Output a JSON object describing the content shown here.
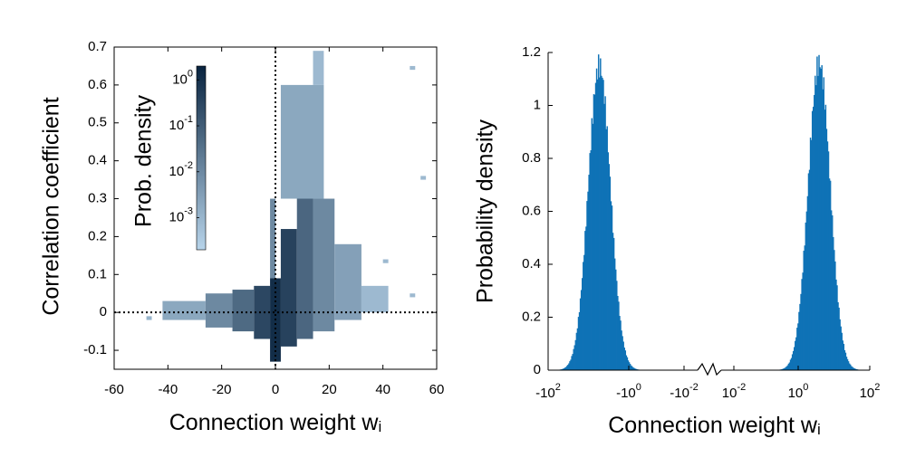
{
  "chart_data": [
    {
      "type": "heatmap",
      "xlabel": "Connection weight w",
      "xlabel_sub": "i",
      "ylabel": "Correlation coefficient",
      "xlim": [
        -60,
        60
      ],
      "ylim": [
        -0.15,
        0.7
      ],
      "xticks": [
        -60,
        -40,
        -20,
        0,
        20,
        40,
        60
      ],
      "xtick_labels": [
        "-60",
        "-40",
        "-20",
        "0",
        "20",
        "40",
        "60"
      ],
      "yticks": [
        -0.1,
        0,
        0.1,
        0.2,
        0.3,
        0.4,
        0.5,
        0.6,
        0.7
      ],
      "ytick_labels": [
        "-0.1",
        "0",
        "0.1",
        "0.2",
        "0.3",
        "0.4",
        "0.5",
        "0.6",
        "0.7"
      ],
      "reference_lines": {
        "x": 0,
        "y": 0,
        "style": "dotted"
      },
      "colorbar": {
        "label": "Prob. density",
        "scale": "log",
        "range": [
          0.0002,
          2
        ],
        "ticks": [
          {
            "base": "10",
            "exp": "0",
            "value": 1
          },
          {
            "base": "10",
            "exp": "-1",
            "value": 0.1
          },
          {
            "base": "10",
            "exp": "-2",
            "value": 0.01
          },
          {
            "base": "10",
            "exp": "-3",
            "value": 0.001
          }
        ],
        "color_low": "#b7d4ea",
        "color_high": "#08233f",
        "placement": "inside upper-left"
      },
      "density_cells": [
        {
          "x": [
            -48,
            -46
          ],
          "y": [
            -0.01,
            -0.02
          ],
          "d": 0.001
        },
        {
          "x": [
            -42,
            -26
          ],
          "y": [
            -0.02,
            0.03
          ],
          "d": 0.002
        },
        {
          "x": [
            -26,
            -16
          ],
          "y": [
            -0.04,
            0.05
          ],
          "d": 0.01
        },
        {
          "x": [
            -16,
            -8
          ],
          "y": [
            -0.05,
            0.06
          ],
          "d": 0.05
        },
        {
          "x": [
            -8,
            -2
          ],
          "y": [
            -0.07,
            0.07
          ],
          "d": 0.3
        },
        {
          "x": [
            -2,
            2
          ],
          "y": [
            -0.13,
            0.09
          ],
          "d": 1.2
        },
        {
          "x": [
            -2,
            0
          ],
          "y": [
            0.09,
            0.3
          ],
          "d": 0.01
        },
        {
          "x": [
            2,
            8
          ],
          "y": [
            -0.09,
            0.22
          ],
          "d": 0.4
        },
        {
          "x": [
            8,
            14
          ],
          "y": [
            -0.07,
            0.32
          ],
          "d": 0.06
        },
        {
          "x": [
            14,
            22
          ],
          "y": [
            -0.05,
            0.3
          ],
          "d": 0.01
        },
        {
          "x": [
            22,
            32
          ],
          "y": [
            -0.02,
            0.18
          ],
          "d": 0.003
        },
        {
          "x": [
            32,
            42
          ],
          "y": [
            0.0,
            0.07
          ],
          "d": 0.0008
        },
        {
          "x": [
            2,
            18
          ],
          "y": [
            0.3,
            0.6
          ],
          "d": 0.002
        },
        {
          "x": [
            14,
            18
          ],
          "y": [
            0.6,
            0.69
          ],
          "d": 0.0008
        },
        {
          "x": [
            50,
            52
          ],
          "y": [
            0.64,
            0.65
          ],
          "d": 0.0008
        },
        {
          "x": [
            54,
            56
          ],
          "y": [
            0.35,
            0.36
          ],
          "d": 0.0008
        },
        {
          "x": [
            40,
            42
          ],
          "y": [
            0.13,
            0.14
          ],
          "d": 0.0008
        },
        {
          "x": [
            50,
            52
          ],
          "y": [
            0.04,
            0.05
          ],
          "d": 0.0008
        }
      ]
    },
    {
      "type": "bar",
      "subtype": "histogram",
      "xlabel": "Connection weight w",
      "xlabel_sub": "i",
      "ylabel": "Probability density",
      "xscale": "symlog",
      "ylim": [
        0,
        1.2
      ],
      "yticks": [
        0,
        0.2,
        0.4,
        0.6,
        0.8,
        1,
        1.2
      ],
      "ytick_labels": [
        "0",
        "0.2",
        "0.4",
        "0.6",
        "0.8",
        "1",
        "1.2"
      ],
      "xtick_labels": [
        {
          "base": "-10",
          "exp": "2"
        },
        {
          "base": "-10",
          "exp": "0"
        },
        {
          "base": "-10",
          "exp": "-2"
        },
        {
          "base": "10",
          "exp": "-2"
        },
        {
          "base": "10",
          "exp": "0"
        },
        {
          "base": "10",
          "exp": "2"
        }
      ],
      "axis_break": true,
      "color": "#0f72b6",
      "peaks": [
        {
          "x": -3,
          "height": 1.15
        },
        {
          "x": 3,
          "height": 1.16
        }
      ],
      "support": {
        "left": [
          -100,
          -0.03
        ],
        "right": [
          0.03,
          100
        ]
      }
    }
  ]
}
